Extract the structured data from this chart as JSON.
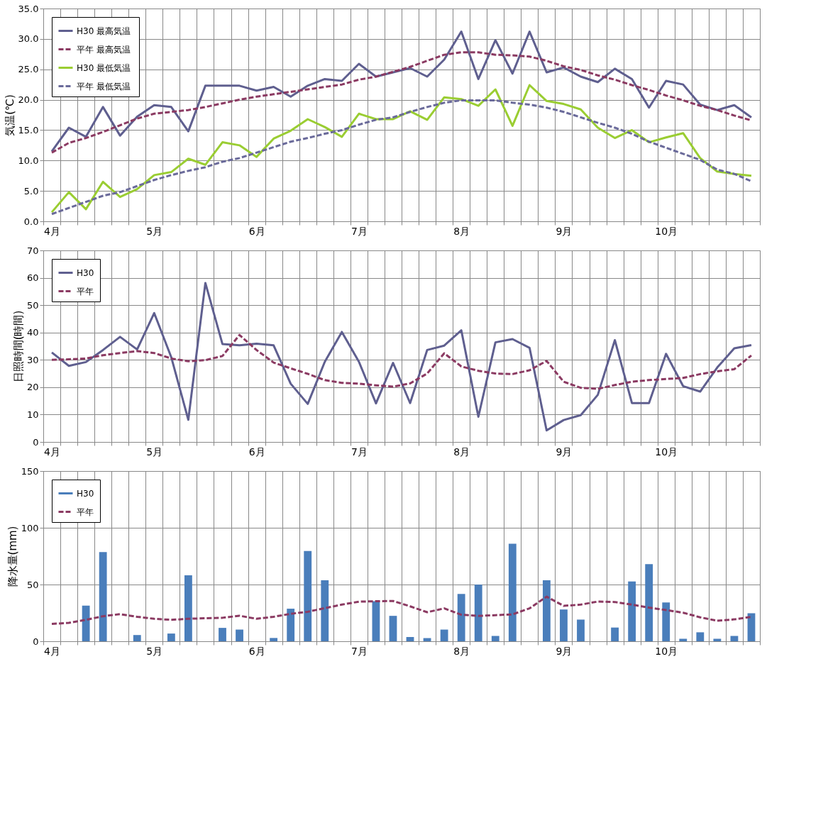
{
  "chart_data": [
    {
      "type": "line",
      "ylabel": "気温(℃)",
      "categories": [
        "4月",
        null,
        null,
        null,
        null,
        null,
        "5月",
        null,
        null,
        null,
        null,
        null,
        "6月",
        null,
        null,
        null,
        null,
        null,
        "7月",
        null,
        null,
        null,
        null,
        null,
        "8月",
        null,
        null,
        null,
        null,
        null,
        "9月",
        null,
        null,
        null,
        null,
        null,
        "10月",
        null,
        null,
        null,
        null,
        null
      ],
      "ylim": [
        0,
        35
      ],
      "yticks": [
        {
          "value": 0,
          "label": "0.0"
        },
        {
          "value": 5,
          "label": "5.0"
        },
        {
          "value": 10,
          "label": "10.0"
        },
        {
          "value": 15,
          "label": "15.0"
        },
        {
          "value": 20,
          "label": "20.0"
        },
        {
          "value": 25,
          "label": "25.0"
        },
        {
          "value": 30,
          "label": "30.0"
        },
        {
          "value": 35,
          "label": "35.0"
        }
      ],
      "grid": true,
      "legend": "top left",
      "series": [
        {
          "name": "H30 最高気温",
          "color": "#5f5f8f",
          "line_style": "solid",
          "values": [
            11.5,
            15.4,
            13.9,
            18.8,
            14.1,
            17.2,
            19.1,
            18.8,
            14.8,
            22.3,
            22.3,
            22.3,
            21.5,
            22.1,
            20.5,
            22.3,
            23.4,
            23.1,
            25.9,
            23.8,
            24.5,
            25.2,
            23.8,
            26.6,
            31.2,
            23.4,
            29.8,
            24.3,
            31.2,
            24.5,
            25.3,
            23.8,
            22.9,
            25.1,
            23.4,
            18.7,
            23.1,
            22.5,
            19.2,
            18.3,
            19.1,
            17.1
          ]
        },
        {
          "name": "平年 最高気温",
          "color": "#8b3a62",
          "line_style": "dashed",
          "values": [
            11.3,
            12.9,
            13.7,
            14.7,
            15.8,
            16.9,
            17.7,
            18.0,
            18.3,
            18.8,
            19.4,
            20.0,
            20.5,
            20.9,
            21.3,
            21.7,
            22.1,
            22.5,
            23.3,
            23.8,
            24.6,
            25.4,
            26.4,
            27.4,
            27.8,
            27.8,
            27.4,
            27.3,
            27.1,
            26.4,
            25.5,
            24.9,
            24.0,
            23.3,
            22.4,
            21.6,
            20.7,
            19.9,
            19.0,
            18.3,
            17.4,
            16.6
          ]
        },
        {
          "name": "H30  最低気温",
          "color": "#9acd32",
          "line_style": "solid",
          "values": [
            1.5,
            4.8,
            2.0,
            6.5,
            4.0,
            5.3,
            7.6,
            8.1,
            10.3,
            9.3,
            13.0,
            12.5,
            10.6,
            13.6,
            14.9,
            16.8,
            15.5,
            13.9,
            17.7,
            16.8,
            16.8,
            18.1,
            16.7,
            20.4,
            20.1,
            19.0,
            21.7,
            15.7,
            22.4,
            19.8,
            19.3,
            18.4,
            15.4,
            13.7,
            15.0,
            13.0,
            13.8,
            14.5,
            10.4,
            8.2,
            7.8,
            7.5
          ]
        },
        {
          "name": "平年 最低気温",
          "color": "#6a6a9a",
          "line_style": "dashed",
          "values": [
            1.2,
            2.2,
            3.2,
            4.2,
            4.8,
            5.8,
            6.8,
            7.6,
            8.3,
            8.9,
            9.8,
            10.4,
            11.3,
            12.2,
            13.1,
            13.7,
            14.4,
            15.0,
            15.9,
            16.7,
            17.1,
            18.0,
            18.8,
            19.5,
            19.9,
            19.9,
            19.9,
            19.5,
            19.2,
            18.7,
            18.0,
            17.1,
            16.2,
            15.4,
            14.4,
            13.1,
            12.1,
            11.1,
            10.1,
            8.5,
            7.8,
            6.6
          ]
        }
      ]
    },
    {
      "type": "line",
      "ylabel": "日照時間(時間)",
      "categories": [
        "4月",
        null,
        null,
        null,
        null,
        null,
        "5月",
        null,
        null,
        null,
        null,
        null,
        "6月",
        null,
        null,
        null,
        null,
        null,
        "7月",
        null,
        null,
        null,
        null,
        null,
        "8月",
        null,
        null,
        null,
        null,
        null,
        "9月",
        null,
        null,
        null,
        null,
        null,
        "10月",
        null,
        null,
        null,
        null,
        null
      ],
      "ylim": [
        0,
        70
      ],
      "yticks": [
        0,
        10,
        20,
        30,
        40,
        50,
        60,
        70
      ],
      "grid": true,
      "legend": "top left",
      "series": [
        {
          "name": "H30",
          "color": "#5f5f8f",
          "line_style": "solid",
          "values": [
            32.7,
            27.8,
            29.2,
            33.6,
            38.4,
            33.8,
            47.1,
            31.0,
            8.1,
            58.1,
            35.8,
            35.3,
            35.9,
            35.3,
            21.3,
            13.9,
            29.3,
            40.2,
            29.3,
            14.1,
            28.9,
            14.2,
            33.6,
            35.2,
            40.8,
            9.2,
            36.4,
            37.6,
            34.4,
            4.2,
            8.0,
            9.8,
            17.2,
            37.2,
            14.2,
            14.2,
            32.2,
            20.4,
            18.4,
            27.2,
            34.2,
            35.4
          ]
        },
        {
          "name": "平年",
          "color": "#8b3a62",
          "line_style": "dashed",
          "values": [
            30.0,
            30.2,
            30.5,
            31.7,
            32.5,
            33.2,
            32.5,
            30.5,
            29.5,
            29.9,
            31.4,
            39.1,
            33.6,
            29.0,
            26.9,
            24.9,
            22.6,
            21.6,
            21.3,
            20.7,
            20.2,
            21.4,
            25.0,
            32.4,
            27.6,
            26.0,
            25.0,
            24.8,
            26.2,
            29.6,
            22.0,
            19.8,
            19.4,
            20.8,
            22.0,
            22.6,
            23.0,
            23.4,
            24.8,
            25.8,
            26.6,
            31.6
          ]
        }
      ]
    },
    {
      "type": "bar",
      "ylabel": "降水量(mm)",
      "categories": [
        "4月",
        null,
        null,
        null,
        null,
        null,
        "5月",
        null,
        null,
        null,
        null,
        null,
        "6月",
        null,
        null,
        null,
        null,
        null,
        "7月",
        null,
        null,
        null,
        null,
        null,
        "8月",
        null,
        null,
        null,
        null,
        null,
        "9月",
        null,
        null,
        null,
        null,
        null,
        "10月",
        null,
        null,
        null,
        null,
        null
      ],
      "ylim": [
        0,
        150
      ],
      "yticks": [
        0,
        50,
        100,
        150
      ],
      "grid": true,
      "legend": "top left",
      "series": [
        {
          "name": "H30",
          "type": "bar",
          "color": "#4a7ebb",
          "values": [
            null,
            null,
            31.4,
            78.6,
            null,
            5.5,
            null,
            6.8,
            58.1,
            null,
            11.8,
            10.3,
            null,
            2.9,
            28.7,
            79.5,
            53.7,
            null,
            null,
            35.3,
            22.4,
            3.7,
            2.8,
            10.3,
            41.7,
            49.9,
            4.7,
            86.0,
            null,
            53.8,
            28.0,
            19.1,
            null,
            12.1,
            52.7,
            67.9,
            34.2,
            2.2,
            7.9,
            2.2,
            4.7,
            24.7
          ]
        },
        {
          "name": "平年",
          "type": "line",
          "color": "#8b3a62",
          "line_style": "dashed",
          "values": [
            15.3,
            16.2,
            18.9,
            22.1,
            23.9,
            21.6,
            19.8,
            18.9,
            19.8,
            20.3,
            20.7,
            22.5,
            19.8,
            21.6,
            24.2,
            26.0,
            29.2,
            32.3,
            34.9,
            35.3,
            35.5,
            30.8,
            25.6,
            29.0,
            23.4,
            22.4,
            23.0,
            23.7,
            29.0,
            39.3,
            31.2,
            32.3,
            35.0,
            34.6,
            32.3,
            29.7,
            27.5,
            25.2,
            21.1,
            18.1,
            19.3,
            21.5
          ]
        }
      ]
    }
  ]
}
